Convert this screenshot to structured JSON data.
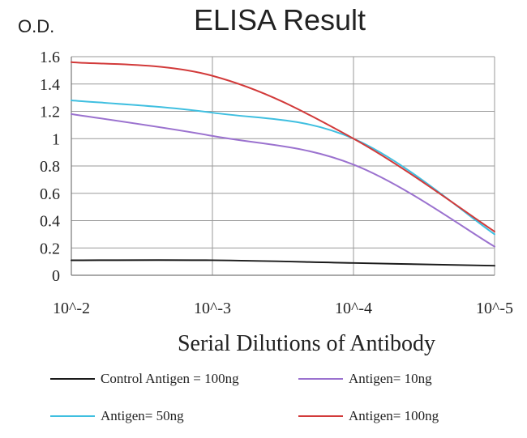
{
  "chart_data": {
    "type": "line",
    "title": "ELISA Result",
    "ylabel": "O.D.",
    "xlabel": "Serial Dilutions  of Antibody",
    "categories": [
      "10^-2",
      "10^-3",
      "10^-4",
      "10^-5"
    ],
    "ylim": [
      0,
      1.6
    ],
    "yticks": [
      "0",
      "0.2",
      "0.4",
      "0.6",
      "0.8",
      "1",
      "1.2",
      "1.4",
      "1.6"
    ],
    "grid": true,
    "legend_position": "bottom",
    "series": [
      {
        "name": "Control Antigen = 100ng",
        "color": "#1a1a1a",
        "values": [
          0.11,
          0.11,
          0.09,
          0.07
        ]
      },
      {
        "name": "Antigen= 10ng",
        "color": "#9b72cf",
        "values": [
          1.18,
          1.02,
          0.81,
          0.21
        ]
      },
      {
        "name": "Antigen= 50ng",
        "color": "#3fbfe0",
        "values": [
          1.28,
          1.19,
          1.0,
          0.3
        ]
      },
      {
        "name": "Antigen= 100ng",
        "color": "#d23a3a",
        "values": [
          1.56,
          1.46,
          1.0,
          0.32
        ]
      }
    ]
  }
}
